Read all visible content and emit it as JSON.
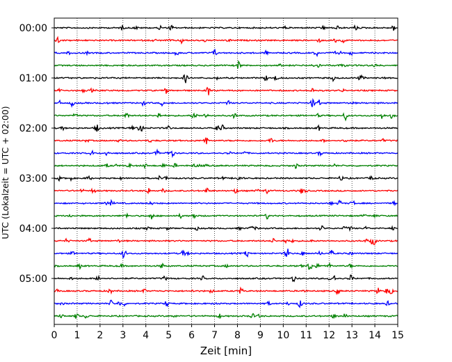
{
  "chart_data": {
    "type": "line",
    "title": "",
    "xlabel": "Zeit  [min]",
    "ylabel": "UTC (Lokalzeit = UTC + 02:00)",
    "xlim": [
      0,
      15
    ],
    "x_ticks": [
      "0",
      "1",
      "2",
      "3",
      "4",
      "5",
      "6",
      "7",
      "8",
      "9",
      "10",
      "11",
      "12",
      "13",
      "14",
      "15"
    ],
    "y_ticks": [
      "00:00",
      "01:00",
      "02:00",
      "03:00",
      "04:00",
      "05:00"
    ],
    "row_interval_minutes": 15,
    "row_count": 24,
    "row_colors": [
      "#000000",
      "#ff0000",
      "#0000ff",
      "#008000"
    ],
    "grid": "vertical dotted at each minute",
    "legend": "none",
    "series": [
      {
        "start": "00:00"
      },
      {
        "start": "00:15"
      },
      {
        "start": "00:30"
      },
      {
        "start": "00:45"
      },
      {
        "start": "01:00"
      },
      {
        "start": "01:15"
      },
      {
        "start": "01:30"
      },
      {
        "start": "01:45"
      },
      {
        "start": "02:00"
      },
      {
        "start": "02:15"
      },
      {
        "start": "02:30"
      },
      {
        "start": "02:45"
      },
      {
        "start": "03:00"
      },
      {
        "start": "03:15"
      },
      {
        "start": "03:30"
      },
      {
        "start": "03:45"
      },
      {
        "start": "04:00"
      },
      {
        "start": "04:15"
      },
      {
        "start": "04:30"
      },
      {
        "start": "04:45"
      },
      {
        "start": "05:00"
      },
      {
        "start": "05:15"
      },
      {
        "start": "05:30"
      },
      {
        "start": "05:45"
      }
    ]
  }
}
